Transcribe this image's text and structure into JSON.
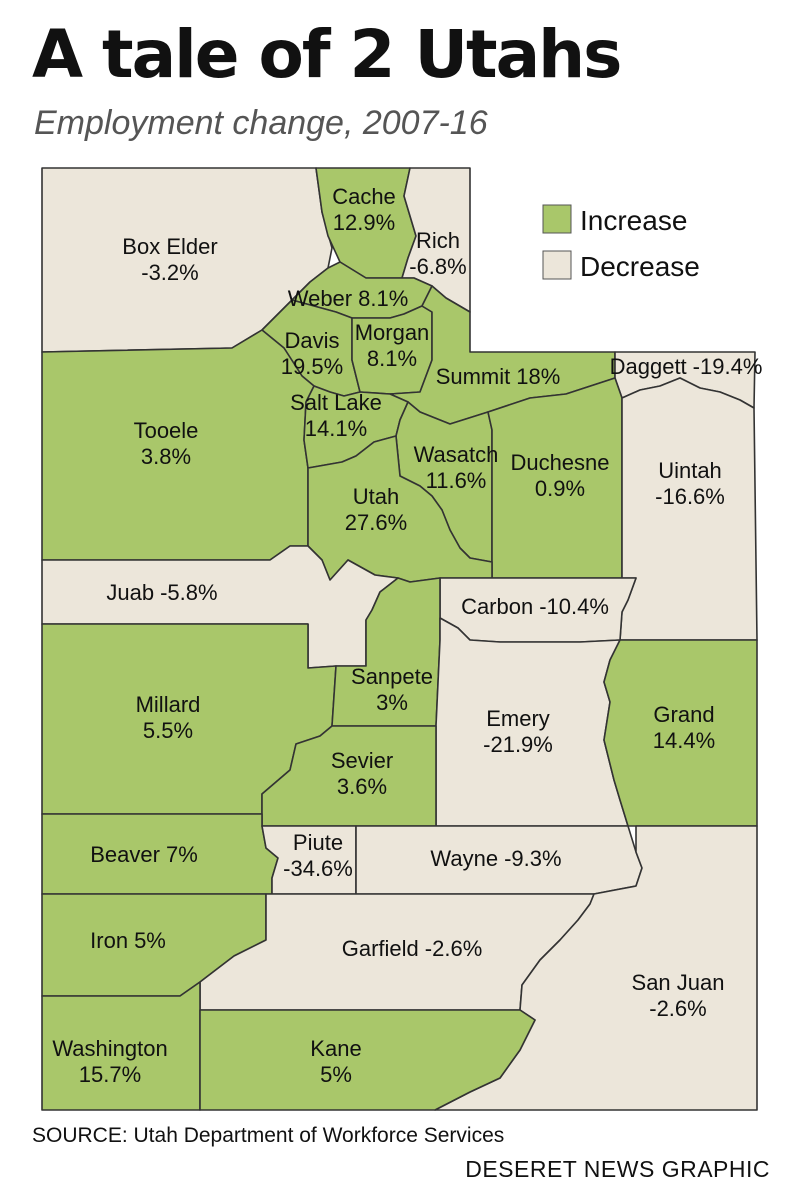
{
  "title": "A tale of 2 Utahs",
  "subtitle": "Employment change, 2007-16",
  "legend": [
    {
      "label": "Increase",
      "color": "#a9c76a"
    },
    {
      "label": "Decrease",
      "color": "#ece6da"
    }
  ],
  "colors": {
    "increase": "#a9c76a",
    "decrease": "#ece6da",
    "border": "#333333"
  },
  "counties": [
    {
      "name": "Box Elder",
      "change": "-3.2%",
      "status": "decrease"
    },
    {
      "name": "Cache",
      "change": "12.9%",
      "status": "increase"
    },
    {
      "name": "Rich",
      "change": "-6.8%",
      "status": "decrease"
    },
    {
      "name": "Weber",
      "change": "8.1%",
      "status": "increase"
    },
    {
      "name": "Davis",
      "change": "19.5%",
      "status": "increase"
    },
    {
      "name": "Morgan",
      "change": "8.1%",
      "status": "increase"
    },
    {
      "name": "Summit",
      "change": "18%",
      "status": "increase"
    },
    {
      "name": "Daggett",
      "change": "-19.4%",
      "status": "decrease"
    },
    {
      "name": "Tooele",
      "change": "3.8%",
      "status": "increase"
    },
    {
      "name": "Salt Lake",
      "change": "14.1%",
      "status": "increase"
    },
    {
      "name": "Wasatch",
      "change": "11.6%",
      "status": "increase"
    },
    {
      "name": "Duchesne",
      "change": "0.9%",
      "status": "increase"
    },
    {
      "name": "Uintah",
      "change": "-16.6%",
      "status": "decrease"
    },
    {
      "name": "Utah",
      "change": "27.6%",
      "status": "increase"
    },
    {
      "name": "Juab",
      "change": "-5.8%",
      "status": "decrease"
    },
    {
      "name": "Carbon",
      "change": "-10.4%",
      "status": "decrease"
    },
    {
      "name": "Millard",
      "change": "5.5%",
      "status": "increase"
    },
    {
      "name": "Sanpete",
      "change": "3%",
      "status": "increase"
    },
    {
      "name": "Emery",
      "change": "-21.9%",
      "status": "decrease"
    },
    {
      "name": "Grand",
      "change": "14.4%",
      "status": "increase"
    },
    {
      "name": "Sevier",
      "change": "3.6%",
      "status": "increase"
    },
    {
      "name": "Beaver",
      "change": "7%",
      "status": "increase"
    },
    {
      "name": "Piute",
      "change": "-34.6%",
      "status": "decrease"
    },
    {
      "name": "Wayne",
      "change": "-9.3%",
      "status": "decrease"
    },
    {
      "name": "Iron",
      "change": "5%",
      "status": "increase"
    },
    {
      "name": "Garfield",
      "change": "-2.6%",
      "status": "decrease"
    },
    {
      "name": "San Juan",
      "change": "-2.6%",
      "status": "decrease"
    },
    {
      "name": "Washington",
      "change": "15.7%",
      "status": "increase"
    },
    {
      "name": "Kane",
      "change": "5%",
      "status": "increase"
    }
  ],
  "source": "SOURCE: Utah Department of Workforce Services",
  "credit": "DESERET NEWS GRAPHIC"
}
